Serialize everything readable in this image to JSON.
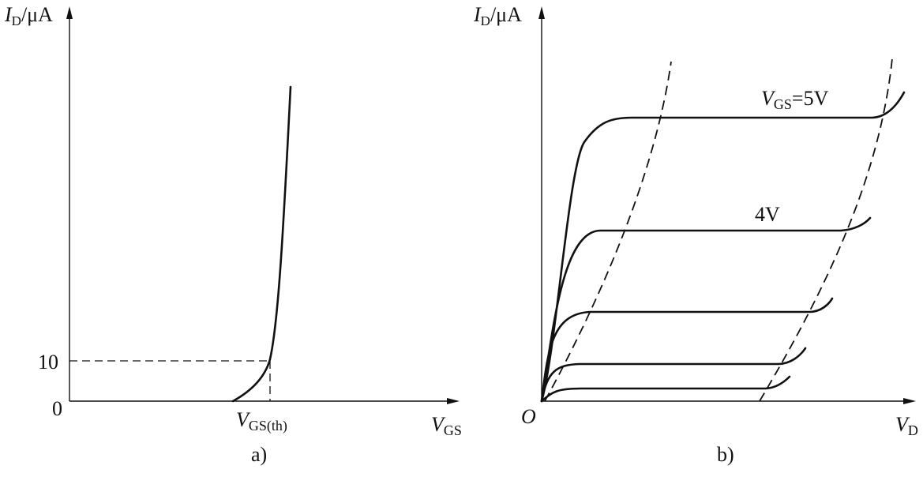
{
  "panel_a": {
    "y_axis_label": {
      "main": "I",
      "sub": "D",
      "unit": "/μA"
    },
    "x_axis_label": {
      "main": "V",
      "sub": "GS"
    },
    "y_tick_10": "10",
    "y_tick_0": "0",
    "threshold_label": {
      "main": "V",
      "sub": "GS(th)"
    },
    "caption": "a)"
  },
  "panel_b": {
    "y_axis_label": {
      "main": "I",
      "sub": "D",
      "unit": "/μA"
    },
    "x_axis_label": {
      "main": "V",
      "sub": "D"
    },
    "origin_label": "O",
    "curve_label_top": {
      "main": "V",
      "sub": "GS",
      "value": "=5V"
    },
    "curve_label_second": "4V",
    "caption": "b)"
  }
}
